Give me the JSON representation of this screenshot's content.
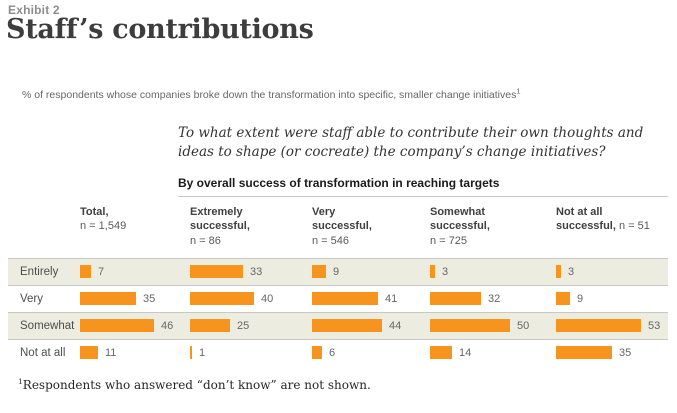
{
  "exhibit_label": "Exhibit 2",
  "title": "Staff’s contributions",
  "description": {
    "text": "% of respondents whose companies broke down the transformation into specific, smaller change initiatives",
    "footnote_marker": "1"
  },
  "question": "To what extent were staff able to contribute their own thoughts and ideas to shape (or cocreate) the company’s change initiatives?",
  "group_header": "By overall success of transformation in reaching targets",
  "footnote": {
    "marker": "1",
    "text": "Respondents who answered “don’t know” are not shown."
  },
  "colors": {
    "bar_orange": "#f7941e",
    "row_band_beige": "#edece1",
    "rule_gray": "#c8c8c8",
    "title_gray": "#3d3d3d"
  },
  "chart_data": {
    "type": "bar",
    "orientation": "horizontal",
    "value_unit": "% of respondents",
    "value_range": [
      0,
      100
    ],
    "grid": false,
    "legend": false,
    "columns": [
      {
        "title_lines": [
          "Total,"
        ],
        "n_label": "n = 1,549",
        "n_inline": false
      },
      {
        "title_lines": [
          "Extremely",
          "successful,"
        ],
        "n_label": "n = 86",
        "n_inline": false
      },
      {
        "title_lines": [
          "Very",
          "successful,"
        ],
        "n_label": "n = 546",
        "n_inline": false
      },
      {
        "title_lines": [
          "Somewhat",
          "successful,"
        ],
        "n_label": "n = 725",
        "n_inline": false
      },
      {
        "title_lines": [
          "Not at all",
          "successful,"
        ],
        "n_label": "n = 51",
        "n_inline": true
      }
    ],
    "rows": [
      {
        "label": "Entirely",
        "values": [
          7,
          33,
          9,
          3,
          3
        ]
      },
      {
        "label": "Very",
        "values": [
          35,
          40,
          41,
          32,
          9
        ]
      },
      {
        "label": "Somewhat",
        "values": [
          46,
          25,
          44,
          50,
          53
        ]
      },
      {
        "label": "Not at all",
        "values": [
          11,
          1,
          6,
          14,
          35
        ]
      }
    ]
  }
}
